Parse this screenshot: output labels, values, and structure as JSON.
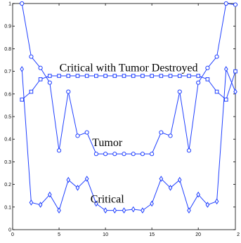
{
  "chart_data": {
    "type": "line",
    "xlim": [
      0,
      24
    ],
    "ylim": [
      0,
      1
    ],
    "x_ticks": [
      0,
      5,
      10,
      15,
      20
    ],
    "x_tick_labels": [
      "0",
      "5",
      "10",
      "15",
      "20"
    ],
    "x_edge_label": "2",
    "y_ticks": [
      0,
      0.1,
      0.2,
      0.3,
      0.4,
      0.5,
      0.6,
      0.7,
      0.8,
      0.9,
      1
    ],
    "y_tick_labels": [
      "0",
      "0.1",
      "0.2",
      "0.3",
      "0.4",
      "0.5",
      "0.6",
      "0.7",
      "0.8",
      "0.9",
      "1"
    ],
    "grid": false,
    "line_color": "#1f3fff",
    "x": [
      1,
      2,
      3,
      4,
      5,
      6,
      7,
      8,
      9,
      10,
      11,
      12,
      13,
      14,
      15,
      16,
      17,
      18,
      19,
      20,
      21,
      22,
      23,
      24
    ],
    "series": [
      {
        "marker": "circle",
        "values": [
          1.0,
          0.765,
          0.715,
          0.65,
          0.35,
          0.61,
          0.415,
          0.43,
          0.335,
          0.335,
          0.335,
          0.335,
          0.335,
          0.335,
          0.335,
          0.43,
          0.415,
          0.61,
          0.35,
          0.65,
          0.715,
          0.765,
          1.0,
          0.995
        ]
      },
      {
        "marker": "square",
        "values": [
          0.575,
          0.61,
          0.665,
          0.68,
          0.68,
          0.68,
          0.68,
          0.68,
          0.68,
          0.68,
          0.68,
          0.68,
          0.68,
          0.68,
          0.68,
          0.68,
          0.68,
          0.68,
          0.68,
          0.68,
          0.665,
          0.61,
          0.575,
          0.7
        ]
      },
      {
        "marker": "diamond",
        "values": [
          0.71,
          0.12,
          0.11,
          0.155,
          0.085,
          0.22,
          0.185,
          0.225,
          0.115,
          0.085,
          0.085,
          0.085,
          0.09,
          0.085,
          0.115,
          0.225,
          0.185,
          0.22,
          0.085,
          0.155,
          0.11,
          0.125,
          0.71,
          0.61
        ]
      }
    ],
    "annotations": [
      {
        "text": "Critical with Tumor Destroyed",
        "x": 12.5,
        "y": 0.7
      },
      {
        "text": "Tumor",
        "x": 10.2,
        "y": 0.37
      },
      {
        "text": "Critical",
        "x": 10.2,
        "y": 0.12
      }
    ]
  }
}
